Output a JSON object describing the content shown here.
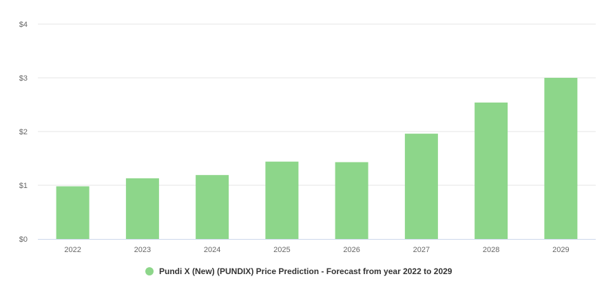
{
  "chart_data": {
    "type": "bar",
    "title": "",
    "xlabel": "",
    "ylabel": "",
    "categories": [
      "2022",
      "2023",
      "2024",
      "2025",
      "2026",
      "2027",
      "2028",
      "2029"
    ],
    "series": [
      {
        "name": "Pundi X (New) (PUNDIX) Price Prediction - Forecast from year 2022 to 2029",
        "color": "#8dd68a",
        "values": [
          0.98,
          1.13,
          1.19,
          1.44,
          1.43,
          1.96,
          2.54,
          3.0
        ]
      }
    ],
    "ylim": [
      0,
      4
    ],
    "yticks": [
      0,
      1,
      2,
      3,
      4
    ],
    "ytick_labels": [
      "$0",
      "$1",
      "$2",
      "$3",
      "$4"
    ],
    "grid": true,
    "legend_position": "bottom-center",
    "colors": {
      "grid": "#e6e6e6",
      "axis": "#ccd6eb",
      "text": "#666666"
    }
  }
}
